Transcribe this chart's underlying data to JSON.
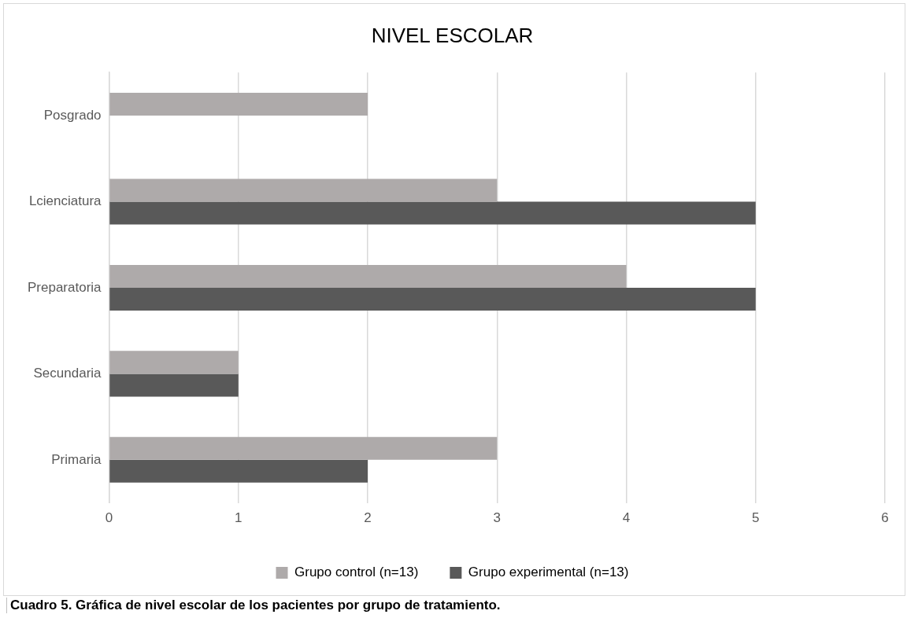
{
  "chart_data": {
    "type": "bar",
    "orientation": "horizontal",
    "title": "NIVEL ESCOLAR",
    "categories": [
      "Posgrado",
      "Lcienciatura",
      "Preparatoria",
      "Secundaria",
      "Primaria"
    ],
    "series": [
      {
        "name": "Grupo control (n=13)",
        "color": "#aeaaaa",
        "values": [
          2,
          3,
          4,
          1,
          3
        ]
      },
      {
        "name": "Grupo experimental (n=13)",
        "color": "#595959",
        "values": [
          0,
          5,
          5,
          1,
          2
        ]
      }
    ],
    "xlim": [
      0,
      6
    ],
    "xticks": [
      0,
      1,
      2,
      3,
      4,
      5,
      6
    ],
    "grid": "x",
    "legend": "bottom",
    "annotations": [
      "Cuadro 5. Gráfica de nivel escolar de los pacientes por grupo de tratamiento."
    ]
  }
}
